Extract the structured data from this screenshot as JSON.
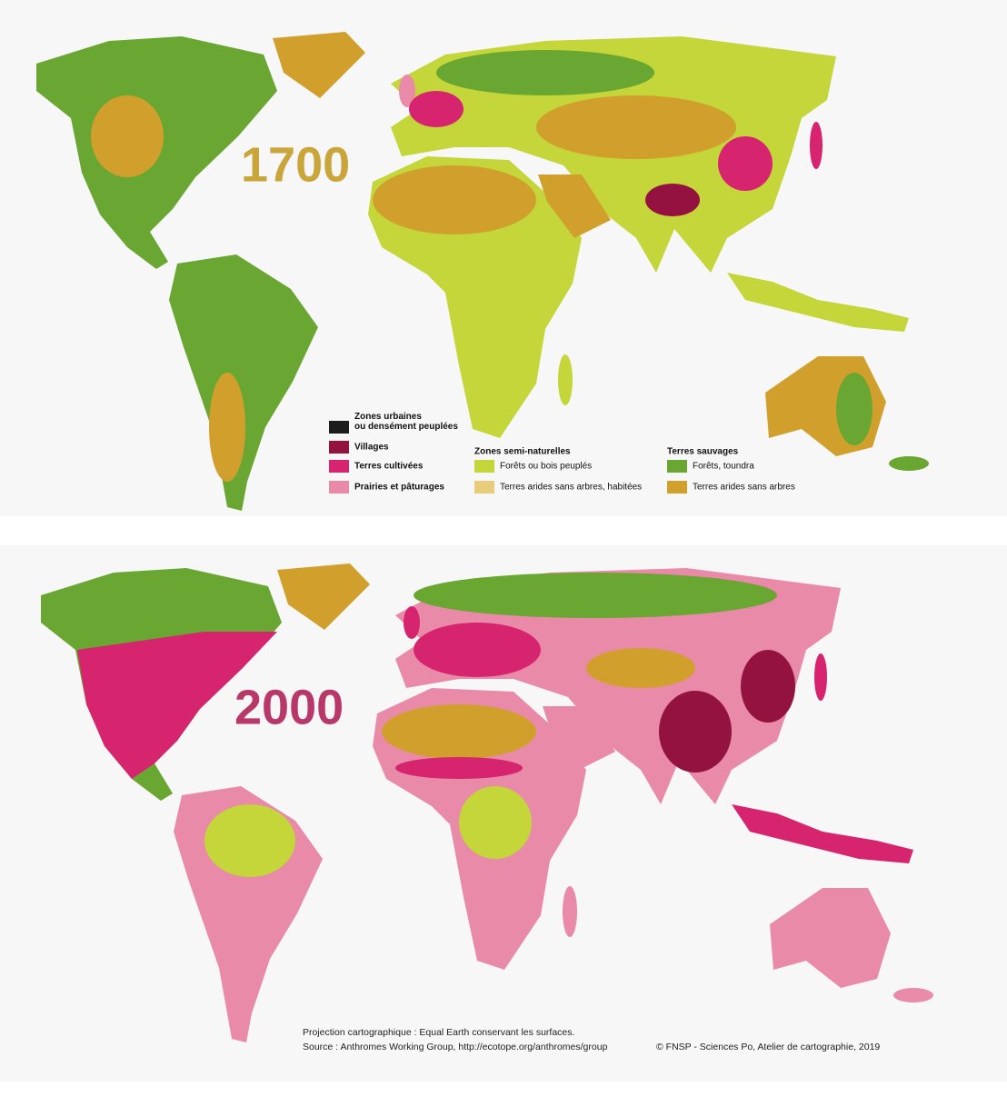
{
  "maps": [
    {
      "year": "1700"
    },
    {
      "year": "2000"
    }
  ],
  "legend": {
    "groups": [
      {
        "items": [
          {
            "lines": [
              "Zones urbaines",
              "ou densément peuplées"
            ],
            "color": "#1c1c1c"
          },
          {
            "lines": [
              "Villages"
            ],
            "color": "#94123f"
          },
          {
            "lines": [
              "Terres cultivées"
            ],
            "color": "#d6246e"
          },
          {
            "lines": [
              "Prairies et pâturages"
            ],
            "color": "#e88aa8"
          }
        ]
      },
      {
        "title": "Zones semi-naturelles",
        "items": [
          {
            "lines": [
              "Forêts ou bois peuplés"
            ],
            "color": "#c4d63a"
          },
          {
            "lines": [
              "Terres arides sans arbres, habitées"
            ],
            "color": "#e8cc7a"
          }
        ]
      },
      {
        "title": "Terres sauvages",
        "items": [
          {
            "lines": [
              "Forêts, toundra"
            ],
            "color": "#6aa632"
          },
          {
            "lines": [
              "Terres arides sans arbres"
            ],
            "color": "#d1a02c"
          }
        ]
      }
    ]
  },
  "footer": {
    "projection": "Projection cartographique : Equal Earth conservant les surfaces.",
    "source": "Source : Anthromes Working Group, http://ecotope.org/anthromes/group",
    "credit": "© FNSP - Sciences Po, Atelier de cartographie, 2019"
  }
}
